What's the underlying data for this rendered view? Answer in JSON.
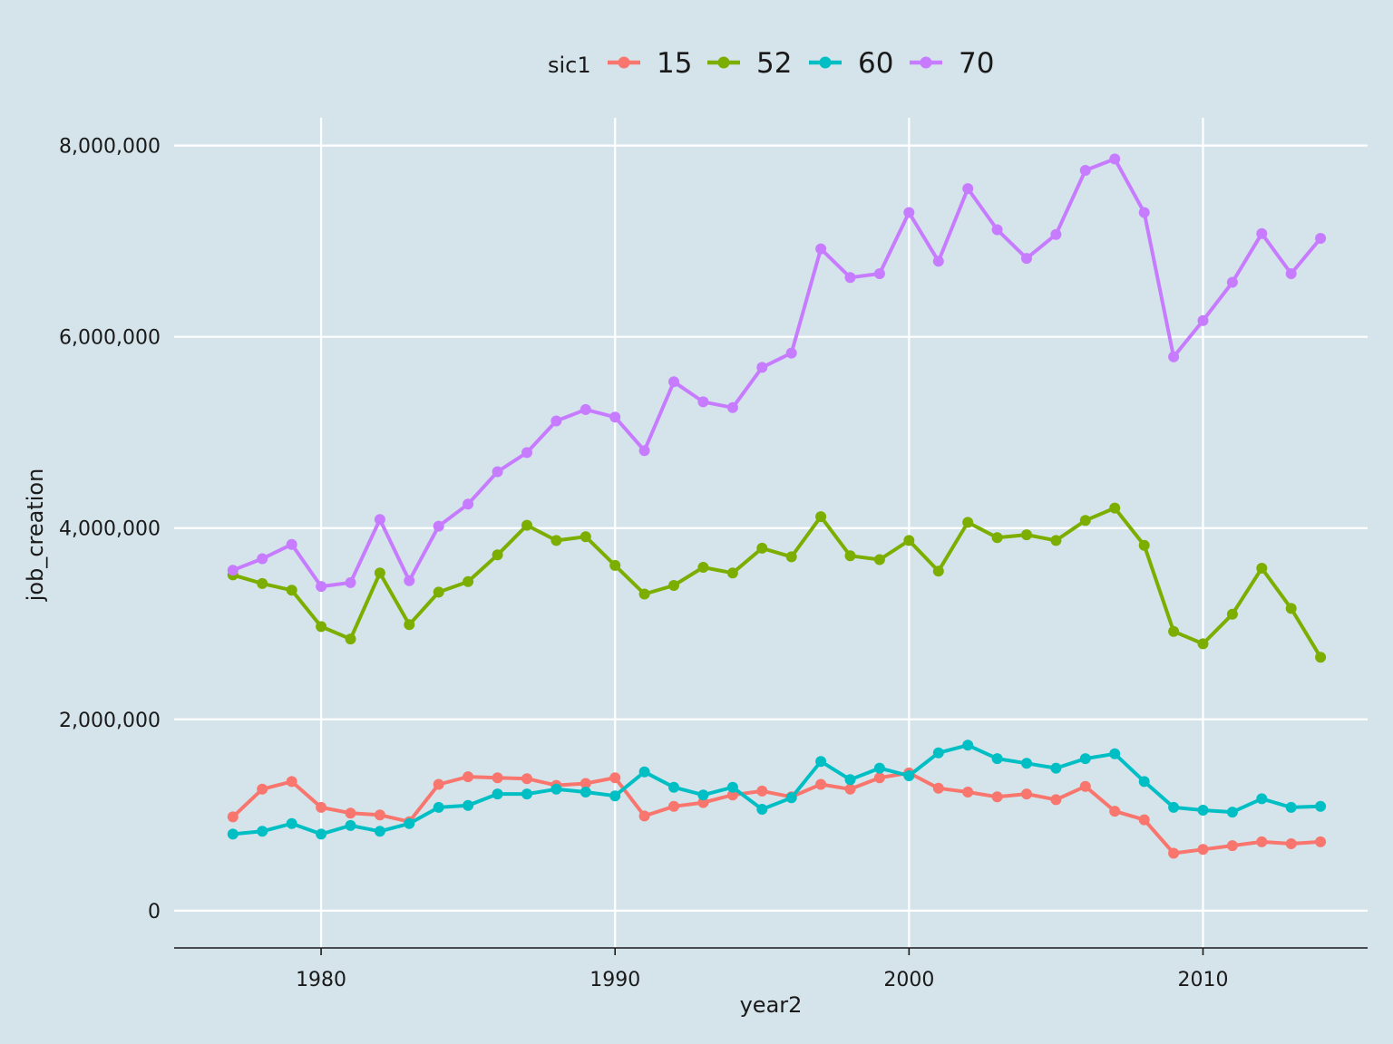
{
  "chart_data": {
    "type": "line",
    "xlabel": "year2",
    "ylabel": "job_creation",
    "xlim": [
      1975,
      2015.6
    ],
    "ylim": [
      -390000,
      8290000
    ],
    "x_ticks": [
      {
        "value": 1980,
        "label": "1980"
      },
      {
        "value": 1990,
        "label": "1990"
      },
      {
        "value": 2000,
        "label": "2000"
      },
      {
        "value": 2010,
        "label": "2010"
      }
    ],
    "y_ticks": [
      {
        "value": 0,
        "label": "0"
      },
      {
        "value": 2000000,
        "label": "2,000,000"
      },
      {
        "value": 4000000,
        "label": "4,000,000"
      },
      {
        "value": 6000000,
        "label": "6,000,000"
      },
      {
        "value": 8000000,
        "label": "8,000,000"
      }
    ],
    "grid": true,
    "legend": {
      "title": "sic1",
      "position": "top"
    },
    "x": [
      1977,
      1978,
      1979,
      1980,
      1981,
      1982,
      1983,
      1984,
      1985,
      1986,
      1987,
      1988,
      1989,
      1990,
      1991,
      1992,
      1993,
      1994,
      1995,
      1996,
      1997,
      1998,
      1999,
      2000,
      2001,
      2002,
      2003,
      2004,
      2005,
      2006,
      2007,
      2008,
      2009,
      2010,
      2011,
      2012,
      2013,
      2014
    ],
    "series": [
      {
        "name": "15",
        "color": "#f8766d",
        "values": [
          980000,
          1270000,
          1350000,
          1080000,
          1020000,
          1000000,
          930000,
          1320000,
          1400000,
          1390000,
          1380000,
          1310000,
          1330000,
          1390000,
          990000,
          1090000,
          1130000,
          1210000,
          1250000,
          1190000,
          1320000,
          1270000,
          1390000,
          1440000,
          1280000,
          1240000,
          1190000,
          1220000,
          1160000,
          1300000,
          1040000,
          950000,
          600000,
          640000,
          680000,
          720000,
          700000,
          720000
        ]
      },
      {
        "name": "52",
        "color": "#7cae00",
        "values": [
          3510000,
          3420000,
          3350000,
          2970000,
          2840000,
          3530000,
          2990000,
          3330000,
          3440000,
          3720000,
          4030000,
          3870000,
          3910000,
          3610000,
          3310000,
          3400000,
          3590000,
          3530000,
          3790000,
          3700000,
          4120000,
          3710000,
          3670000,
          3870000,
          3550000,
          4060000,
          3900000,
          3930000,
          3870000,
          4080000,
          4210000,
          3820000,
          2920000,
          2790000,
          3100000,
          3580000,
          3160000,
          2650000
        ]
      },
      {
        "name": "60",
        "color": "#00bfc4",
        "values": [
          800000,
          830000,
          910000,
          800000,
          890000,
          830000,
          910000,
          1080000,
          1100000,
          1220000,
          1220000,
          1270000,
          1240000,
          1200000,
          1450000,
          1290000,
          1210000,
          1290000,
          1060000,
          1180000,
          1560000,
          1370000,
          1490000,
          1410000,
          1650000,
          1730000,
          1590000,
          1540000,
          1490000,
          1590000,
          1640000,
          1350000,
          1080000,
          1050000,
          1030000,
          1170000,
          1080000,
          1090000
        ]
      },
      {
        "name": "70",
        "color": "#c77cff",
        "values": [
          3560000,
          3680000,
          3830000,
          3390000,
          3430000,
          4090000,
          3450000,
          4020000,
          4250000,
          4590000,
          4790000,
          5120000,
          5240000,
          5160000,
          4810000,
          5530000,
          5320000,
          5260000,
          5680000,
          5830000,
          6920000,
          6620000,
          6660000,
          7300000,
          6790000,
          7550000,
          7120000,
          6820000,
          7070000,
          7740000,
          7860000,
          7300000,
          5790000,
          6170000,
          6570000,
          7080000,
          6660000,
          7030000
        ]
      }
    ]
  }
}
